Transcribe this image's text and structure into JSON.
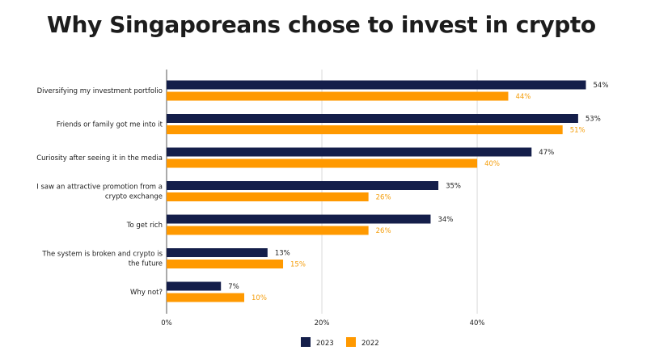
{
  "chart_data": {
    "type": "bar",
    "orientation": "horizontal",
    "title": "Why Singaporeans chose to invest in crypto",
    "xlabel": "",
    "ylabel": "",
    "xlim": [
      0,
      54
    ],
    "x_ticks": [
      "0%",
      "20%",
      "40%"
    ],
    "x_tick_values": [
      0,
      20,
      40
    ],
    "grid": true,
    "legend_position": "bottom-center",
    "categories": [
      [
        "Diversifying my investment portfolio"
      ],
      [
        "Friends or family got me into it"
      ],
      [
        "Curiosity after seeing it in the media"
      ],
      [
        "I saw an attractive promotion from a",
        "crypto exchange"
      ],
      [
        "To get rich"
      ],
      [
        "The system is broken and crypto is",
        "the future"
      ],
      [
        "Why not?"
      ]
    ],
    "series": [
      {
        "name": "2023",
        "color": "#141e4a",
        "values": [
          54,
          53,
          47,
          35,
          34,
          13,
          7
        ],
        "labels": [
          "54%",
          "53%",
          "47%",
          "35%",
          "34%",
          "13%",
          "7%"
        ],
        "label_color": "#1c1c1c"
      },
      {
        "name": "2022",
        "color": "#ff9900",
        "values": [
          44,
          51,
          40,
          26,
          26,
          15,
          10
        ],
        "labels": [
          "44%",
          "51%",
          "40%",
          "26%",
          "26%",
          "15%",
          "10%"
        ],
        "label_color": "#f59e0b"
      }
    ]
  }
}
